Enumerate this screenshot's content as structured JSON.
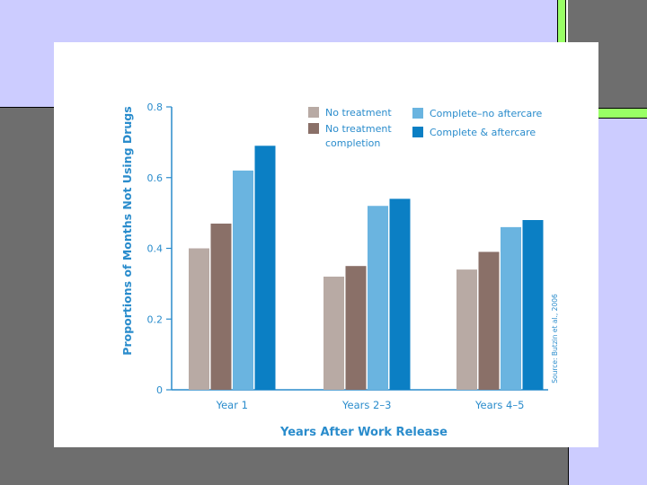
{
  "colors": {
    "no_treatment": "#b8aaa4",
    "no_treatment_completion": "#8a7068",
    "complete_no_aftercare": "#6ab4e0",
    "complete_aftercare": "#0b7fc4",
    "axis_text": "#2a8ccc",
    "slide_lavender": "#ccccff",
    "slide_gray": "#6e6e6e",
    "slide_green": "#99ff66"
  },
  "chart_data": {
    "type": "bar",
    "title": "",
    "xlabel": "Years After Work Release",
    "ylabel": "Proportions of Months Not Using Drugs",
    "ylim": [
      0,
      0.8
    ],
    "yticks": [
      "0",
      "0.2",
      "0.4",
      "0.6",
      "0.8"
    ],
    "categories": [
      "Year 1",
      "Years 2–3",
      "Years 4–5"
    ],
    "series": [
      {
        "name": "No treatment",
        "values": [
          0.4,
          0.32,
          0.34
        ]
      },
      {
        "name": "No treatment completion",
        "values": [
          0.47,
          0.35,
          0.39
        ]
      },
      {
        "name": "Complete–no aftercare",
        "values": [
          0.62,
          0.52,
          0.46
        ]
      },
      {
        "name": "Complete & aftercare",
        "values": [
          0.69,
          0.54,
          0.48
        ]
      }
    ],
    "legend": {
      "placement": "top-right",
      "labels": [
        "No treatment",
        "No treatment completion",
        "Complete–no aftercare",
        "Complete & aftercare"
      ],
      "label_lines": [
        [
          "No treatment"
        ],
        [
          "No treatment",
          "completion"
        ],
        [
          "Complete–no aftercare"
        ],
        [
          "Complete & aftercare"
        ]
      ]
    },
    "source_note": "Source: Butzin et al., 2006",
    "grid": false
  }
}
